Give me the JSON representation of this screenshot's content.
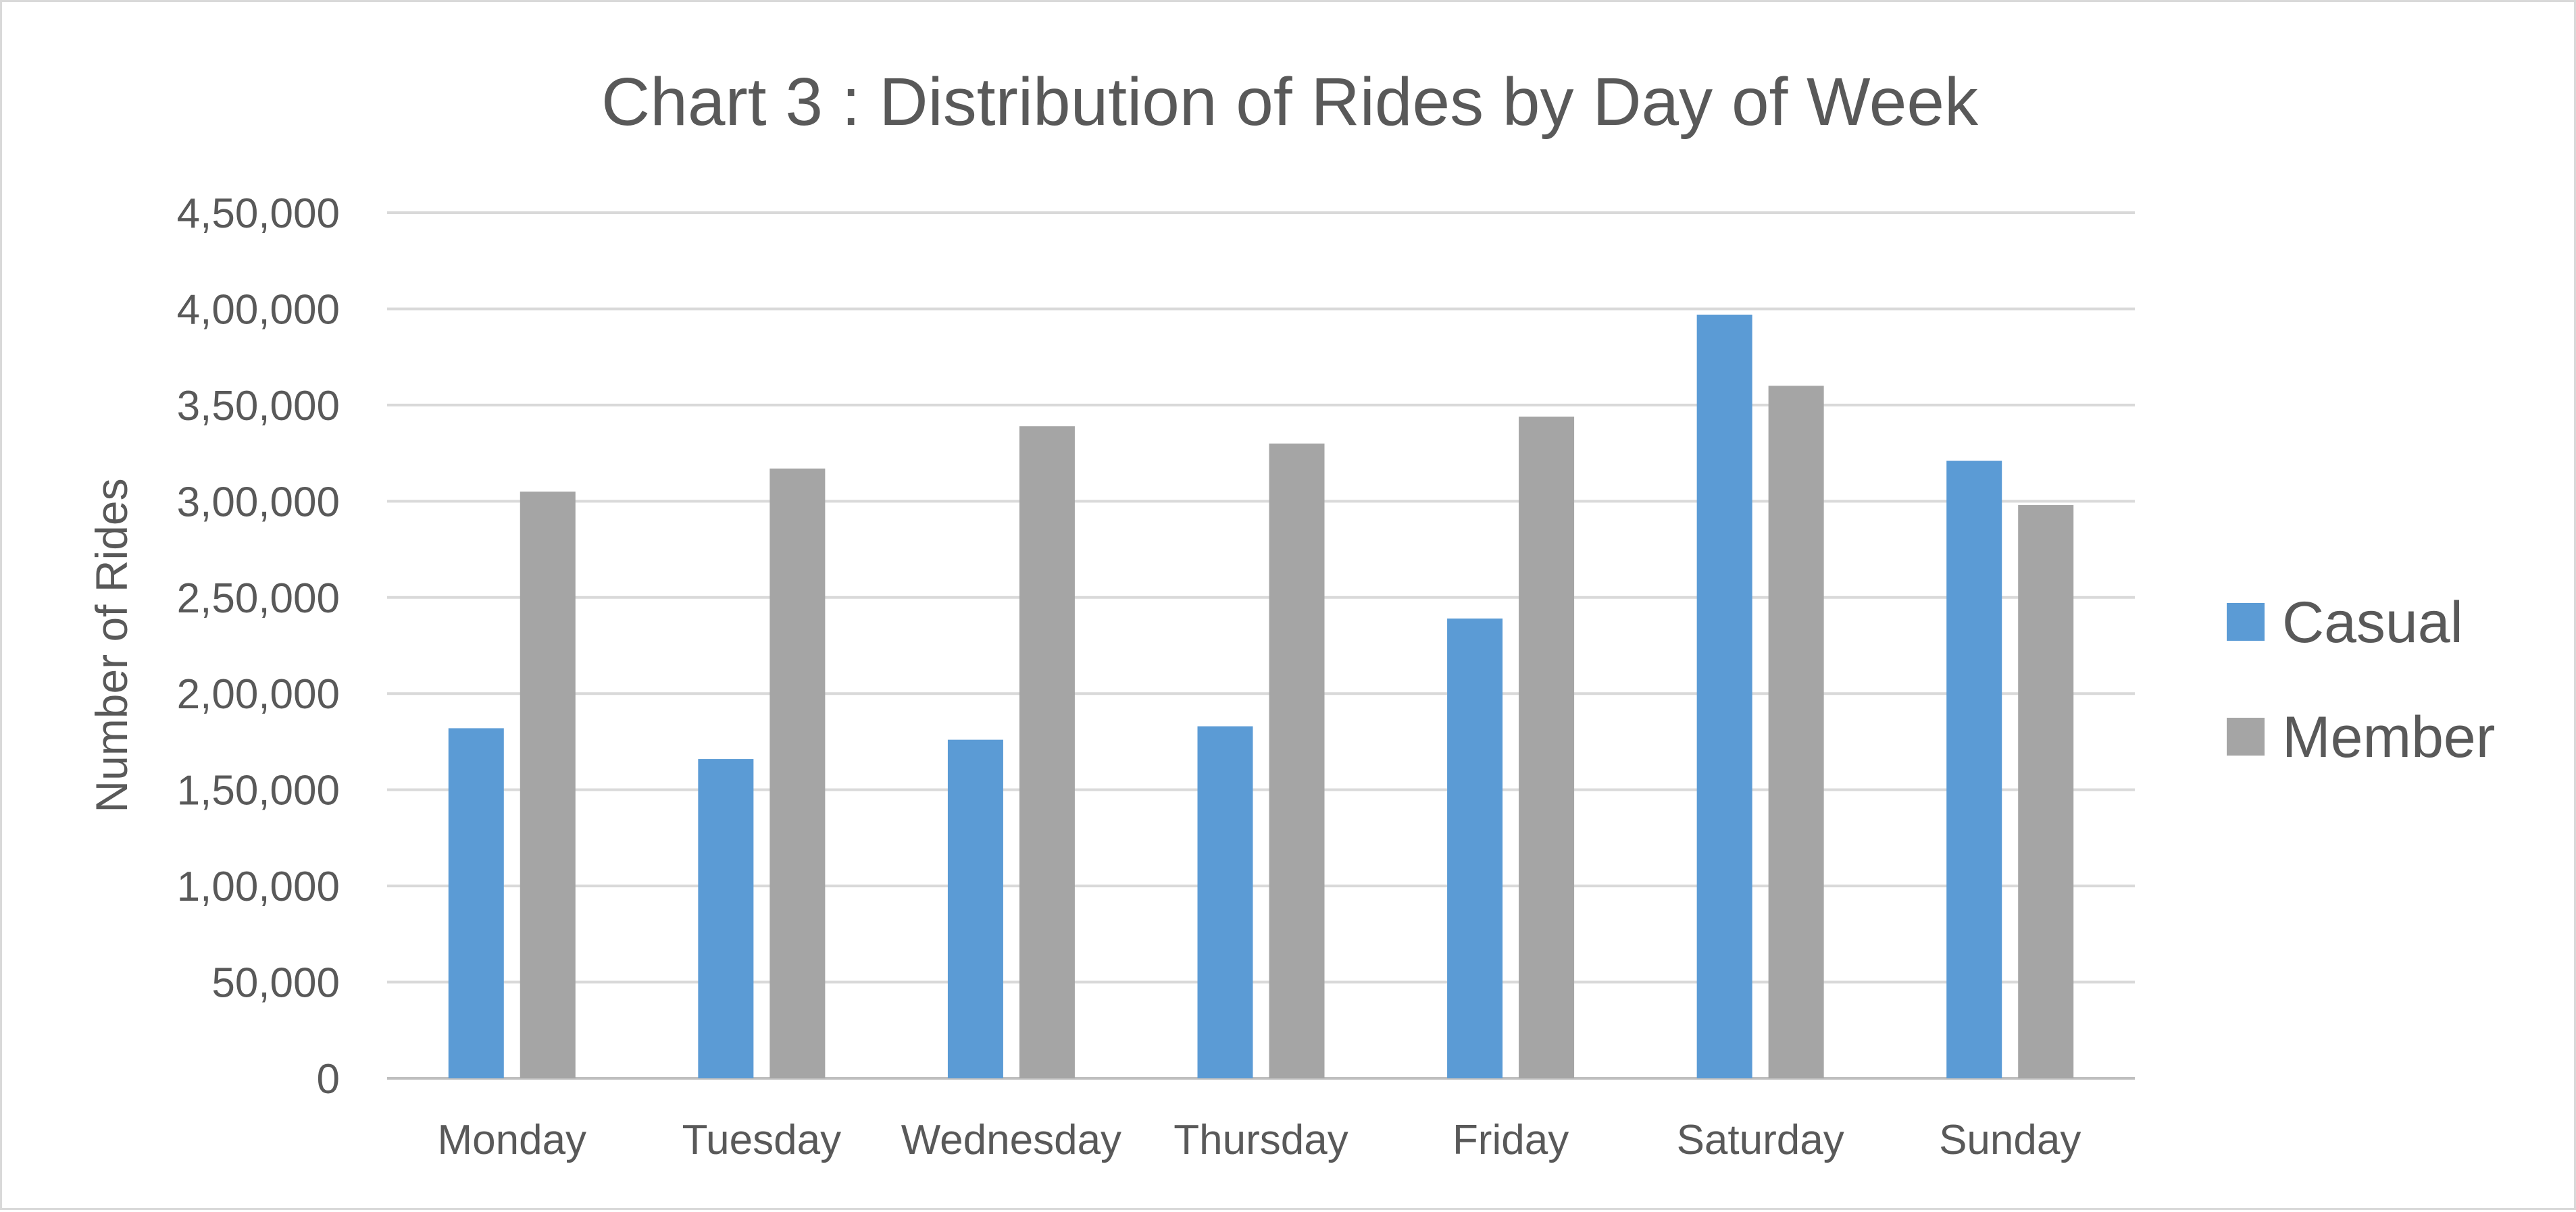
{
  "chart_data": {
    "type": "bar",
    "title": "Chart 3 : Distribution of Rides by Day of Week",
    "xlabel": "",
    "ylabel": "Number of Rides",
    "categories": [
      "Monday",
      "Tuesday",
      "Wednesday",
      "Thursday",
      "Friday",
      "Saturday",
      "Sunday"
    ],
    "series": [
      {
        "name": "Casual",
        "color": "#5b9bd5",
        "values": [
          182000,
          166000,
          176000,
          183000,
          239000,
          397000,
          321000
        ]
      },
      {
        "name": "Member",
        "color": "#a5a5a5",
        "values": [
          305000,
          317000,
          339000,
          330000,
          344000,
          360000,
          298000
        ]
      }
    ],
    "ylim": [
      0,
      450000
    ],
    "yticks": [
      0,
      50000,
      100000,
      150000,
      200000,
      250000,
      300000,
      350000,
      400000,
      450000
    ],
    "ytick_labels": [
      "0",
      "50,000",
      "1,00,000",
      "1,50,000",
      "2,00,000",
      "2,50,000",
      "3,00,000",
      "3,50,000",
      "4,00,000",
      "4,50,000"
    ],
    "grid": true,
    "legend_position": "right"
  }
}
